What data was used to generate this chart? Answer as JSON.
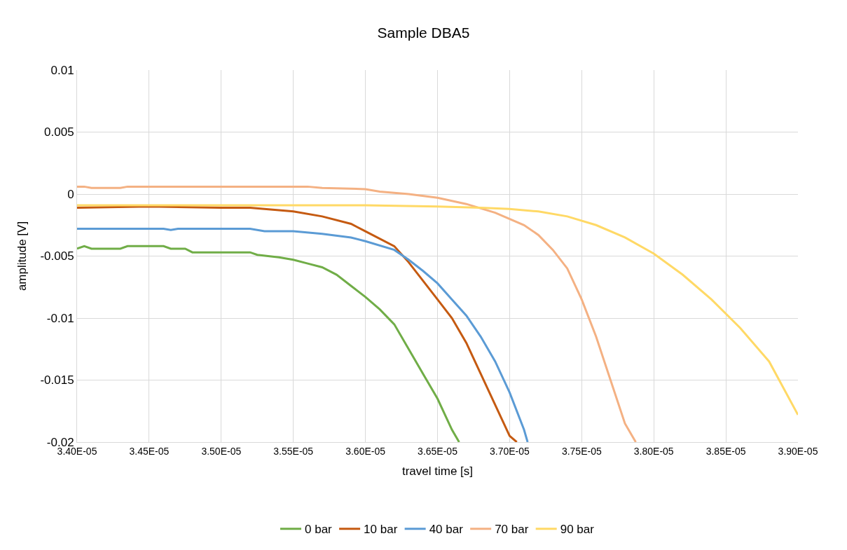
{
  "chart_data": {
    "type": "line",
    "title": "Sample DBA5",
    "xlabel": "travel time [s]",
    "ylabel": "amplitude [V]",
    "xlim": [
      3.4e-05,
      3.9e-05
    ],
    "xticks": [
      {
        "value": 3.4e-05,
        "label": "3.40E-05"
      },
      {
        "value": 3.45e-05,
        "label": "3.45E-05"
      },
      {
        "value": 3.5e-05,
        "label": "3.50E-05"
      },
      {
        "value": 3.55e-05,
        "label": "3.55E-05"
      },
      {
        "value": 3.6e-05,
        "label": "3.60E-05"
      },
      {
        "value": 3.65e-05,
        "label": "3.65E-05"
      },
      {
        "value": 3.7e-05,
        "label": "3.70E-05"
      },
      {
        "value": 3.75e-05,
        "label": "3.75E-05"
      },
      {
        "value": 3.8e-05,
        "label": "3.80E-05"
      },
      {
        "value": 3.85e-05,
        "label": "3.85E-05"
      },
      {
        "value": 3.9e-05,
        "label": "3.90E-05"
      }
    ],
    "ylim": [
      -0.02,
      0.01
    ],
    "yticks": [
      -0.02,
      -0.015,
      -0.01,
      -0.005,
      0,
      0.005,
      0.01
    ],
    "grid": true,
    "legend": "bottom",
    "marker": "none",
    "line_style": "solid",
    "series": [
      {
        "name": "0 bar",
        "color": "#70ad47",
        "x": [
          3.4e-05,
          3.405e-05,
          3.41e-05,
          3.43e-05,
          3.435e-05,
          3.44e-05,
          3.46e-05,
          3.465e-05,
          3.475e-05,
          3.48e-05,
          3.52e-05,
          3.525e-05,
          3.54e-05,
          3.55e-05,
          3.56e-05,
          3.57e-05,
          3.58e-05,
          3.59e-05,
          3.6e-05,
          3.61e-05,
          3.62e-05,
          3.63e-05,
          3.64e-05,
          3.65e-05,
          3.66e-05,
          3.665e-05
        ],
        "values": [
          -0.0044,
          -0.0042,
          -0.0044,
          -0.0044,
          -0.0042,
          -0.0042,
          -0.0042,
          -0.0044,
          -0.0044,
          -0.0047,
          -0.0047,
          -0.0049,
          -0.0051,
          -0.0053,
          -0.0056,
          -0.0059,
          -0.0065,
          -0.0074,
          -0.0083,
          -0.0093,
          -0.0105,
          -0.0125,
          -0.0145,
          -0.0165,
          -0.019,
          -0.02
        ]
      },
      {
        "name": "10 bar",
        "color": "#c55a11",
        "x": [
          3.4e-05,
          3.45e-05,
          3.5e-05,
          3.52e-05,
          3.53e-05,
          3.55e-05,
          3.57e-05,
          3.59e-05,
          3.6e-05,
          3.62e-05,
          3.63e-05,
          3.64e-05,
          3.65e-05,
          3.66e-05,
          3.67e-05,
          3.68e-05,
          3.69e-05,
          3.7e-05,
          3.705e-05
        ],
        "values": [
          -0.0011,
          -0.001,
          -0.0011,
          -0.0011,
          -0.0012,
          -0.0014,
          -0.0018,
          -0.0024,
          -0.003,
          -0.0042,
          -0.0055,
          -0.007,
          -0.0085,
          -0.01,
          -0.012,
          -0.0145,
          -0.017,
          -0.0195,
          -0.02
        ]
      },
      {
        "name": "40 bar",
        "color": "#5b9bd5",
        "x": [
          3.4e-05,
          3.46e-05,
          3.465e-05,
          3.47e-05,
          3.52e-05,
          3.53e-05,
          3.55e-05,
          3.57e-05,
          3.59e-05,
          3.6e-05,
          3.62e-05,
          3.63e-05,
          3.64e-05,
          3.65e-05,
          3.66e-05,
          3.67e-05,
          3.68e-05,
          3.69e-05,
          3.7e-05,
          3.71e-05,
          3.7125e-05
        ],
        "values": [
          -0.0028,
          -0.0028,
          -0.0029,
          -0.0028,
          -0.0028,
          -0.003,
          -0.003,
          -0.0032,
          -0.0035,
          -0.0038,
          -0.0045,
          -0.0053,
          -0.0062,
          -0.0072,
          -0.0085,
          -0.0098,
          -0.0115,
          -0.0135,
          -0.016,
          -0.019,
          -0.02
        ]
      },
      {
        "name": "70 bar",
        "color": "#f4b183",
        "x": [
          3.4e-05,
          3.405e-05,
          3.41e-05,
          3.43e-05,
          3.435e-05,
          3.44e-05,
          3.56e-05,
          3.57e-05,
          3.6e-05,
          3.61e-05,
          3.63e-05,
          3.65e-05,
          3.67e-05,
          3.69e-05,
          3.71e-05,
          3.72e-05,
          3.73e-05,
          3.74e-05,
          3.75e-05,
          3.76e-05,
          3.77e-05,
          3.78e-05,
          3.7875e-05
        ],
        "values": [
          0.0006,
          0.0006,
          0.0005,
          0.0005,
          0.0006,
          0.0006,
          0.0006,
          0.0005,
          0.0004,
          0.0002,
          0.0,
          -0.0003,
          -0.0008,
          -0.0015,
          -0.0025,
          -0.0033,
          -0.0045,
          -0.006,
          -0.0085,
          -0.0115,
          -0.015,
          -0.0185,
          -0.02
        ]
      },
      {
        "name": "90 bar",
        "color": "#ffd966",
        "x": [
          3.4e-05,
          3.45e-05,
          3.5e-05,
          3.55e-05,
          3.6e-05,
          3.65e-05,
          3.68e-05,
          3.7e-05,
          3.72e-05,
          3.74e-05,
          3.76e-05,
          3.78e-05,
          3.8e-05,
          3.82e-05,
          3.84e-05,
          3.86e-05,
          3.88e-05,
          3.9e-05
        ],
        "values": [
          -0.0009,
          -0.0009,
          -0.0009,
          -0.0009,
          -0.0009,
          -0.001,
          -0.0011,
          -0.0012,
          -0.0014,
          -0.0018,
          -0.0025,
          -0.0035,
          -0.0048,
          -0.0065,
          -0.0085,
          -0.0108,
          -0.0135,
          -0.0178
        ]
      }
    ]
  }
}
